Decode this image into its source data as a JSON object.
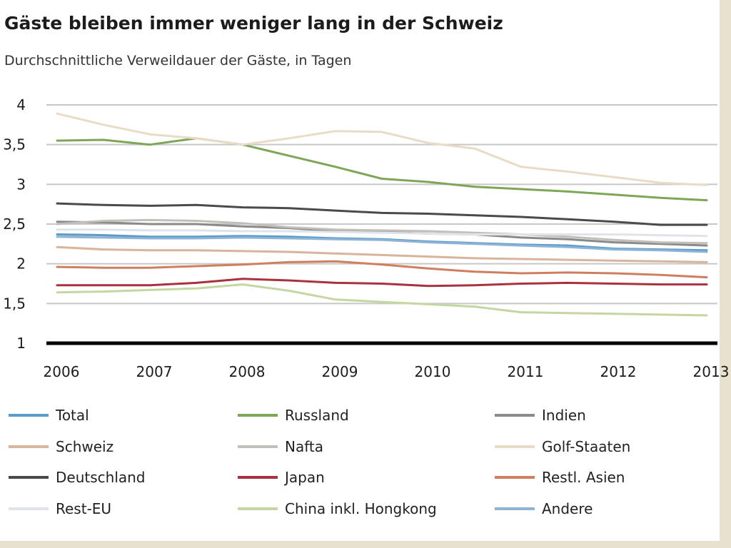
{
  "chart_data": {
    "type": "line",
    "title": "Gäste bleiben immer weniger lang in der Schweiz",
    "subtitle": "Durchschnittliche Verweildauer der Gäste, in Tagen",
    "xlabel": "",
    "ylabel": "",
    "xlim": [
      2006,
      2013
    ],
    "ylim": [
      1,
      4
    ],
    "grid": true,
    "legend_position": "bottom",
    "x_ticks": [
      "2006",
      "2007",
      "2008",
      "2009",
      "2010",
      "2011",
      "2012",
      "2013"
    ],
    "y_ticks": [
      "4",
      "3,5",
      "3",
      "2,5",
      "2",
      "1,5",
      "1"
    ],
    "x": [
      2006.0,
      2006.5,
      2007.0,
      2007.5,
      2008.0,
      2008.5,
      2009.0,
      2009.5,
      2010.0,
      2010.5,
      2011.0,
      2011.5,
      2012.0,
      2012.5,
      2013.0
    ],
    "series": [
      {
        "name": "Total",
        "color": "#5b9bc8",
        "values": [
          2.37,
          2.36,
          2.34,
          2.34,
          2.35,
          2.34,
          2.32,
          2.31,
          2.28,
          2.26,
          2.24,
          2.23,
          2.19,
          2.18,
          2.17
        ]
      },
      {
        "name": "Russland",
        "color": "#7da656",
        "values": [
          3.55,
          3.56,
          3.5,
          3.58,
          3.5,
          3.36,
          3.22,
          3.07,
          3.03,
          2.97,
          2.94,
          2.91,
          2.87,
          2.83,
          2.8
        ]
      },
      {
        "name": "Indien",
        "color": "#8a8a8a",
        "values": [
          2.53,
          2.52,
          2.5,
          2.5,
          2.47,
          2.45,
          2.41,
          2.4,
          2.38,
          2.37,
          2.33,
          2.31,
          2.27,
          2.25,
          2.23
        ]
      },
      {
        "name": "Schweiz",
        "color": "#d9b39c",
        "values": [
          2.21,
          2.18,
          2.17,
          2.17,
          2.16,
          2.15,
          2.13,
          2.11,
          2.09,
          2.07,
          2.06,
          2.05,
          2.04,
          2.03,
          2.02
        ]
      },
      {
        "name": "Nafta",
        "color": "#c2bfbb",
        "values": [
          2.5,
          2.54,
          2.55,
          2.54,
          2.51,
          2.46,
          2.43,
          2.42,
          2.41,
          2.39,
          2.37,
          2.34,
          2.3,
          2.27,
          2.26
        ]
      },
      {
        "name": "Golf-Staaten",
        "color": "#e9dcc6",
        "values": [
          3.89,
          3.75,
          3.63,
          3.58,
          3.5,
          3.58,
          3.67,
          3.66,
          3.52,
          3.45,
          3.22,
          3.16,
          3.09,
          3.02,
          2.99
        ]
      },
      {
        "name": "Deutschland",
        "color": "#4a4a4a",
        "values": [
          2.76,
          2.74,
          2.73,
          2.74,
          2.71,
          2.7,
          2.67,
          2.64,
          2.63,
          2.61,
          2.59,
          2.56,
          2.53,
          2.49,
          2.49
        ]
      },
      {
        "name": "Japan",
        "color": "#a8323f",
        "values": [
          1.73,
          1.73,
          1.73,
          1.76,
          1.81,
          1.79,
          1.76,
          1.75,
          1.72,
          1.73,
          1.75,
          1.76,
          1.75,
          1.74,
          1.74
        ]
      },
      {
        "name": "Restl. Asien",
        "color": "#cf7f60",
        "values": [
          1.96,
          1.95,
          1.95,
          1.97,
          1.99,
          2.02,
          2.03,
          1.99,
          1.94,
          1.9,
          1.88,
          1.89,
          1.88,
          1.86,
          1.83
        ]
      },
      {
        "name": "Rest-EU",
        "color": "#dfe3ea",
        "values": [
          2.43,
          2.43,
          2.42,
          2.42,
          2.41,
          2.41,
          2.4,
          2.39,
          2.38,
          2.37,
          2.37,
          2.37,
          2.37,
          2.36,
          2.35
        ]
      },
      {
        "name": "China inkl. Hongkong",
        "color": "#c5d6a3",
        "values": [
          1.64,
          1.65,
          1.67,
          1.69,
          1.74,
          1.66,
          1.55,
          1.52,
          1.49,
          1.46,
          1.39,
          1.38,
          1.37,
          1.36,
          1.35
        ]
      },
      {
        "name": "Andere",
        "color": "#8db3d6",
        "values": [
          2.34,
          2.33,
          2.32,
          2.32,
          2.33,
          2.32,
          2.31,
          2.3,
          2.27,
          2.25,
          2.23,
          2.21,
          2.18,
          2.17,
          2.15
        ]
      }
    ]
  }
}
